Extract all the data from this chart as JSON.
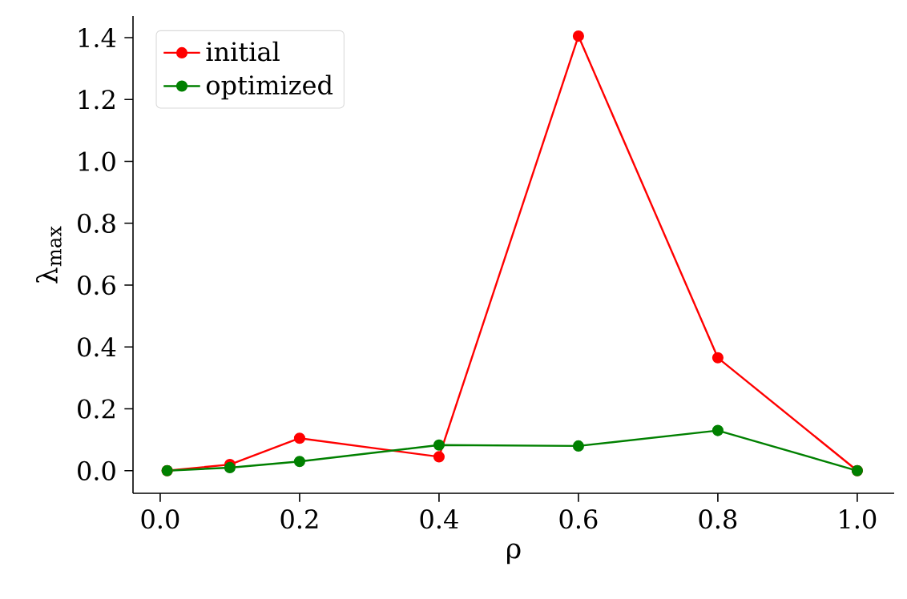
{
  "chart_data": {
    "type": "line",
    "xlabel": "ρ",
    "ylabel": "λ$_{max}$",
    "x": [
      0.01,
      0.1,
      0.2,
      0.4,
      0.6,
      0.8,
      1.0
    ],
    "series": [
      {
        "name": "initial",
        "color": "#ff0000",
        "values": [
          0,
          0.02,
          0.105,
          0.045,
          1.405,
          0.365,
          0
        ]
      },
      {
        "name": "optimized",
        "color": "#008000",
        "values": [
          0,
          0.01,
          0.03,
          0.083,
          0.08,
          0.13,
          0
        ]
      }
    ],
    "xlim": [
      -0.039,
      1.053
    ],
    "ylim": [
      -0.073,
      1.47
    ],
    "xticks": [
      {
        "value": 0,
        "label": "0.0"
      },
      {
        "value": 0.2,
        "label": "0.2"
      },
      {
        "value": 0.4,
        "label": "0.4"
      },
      {
        "value": 0.6,
        "label": "0.6"
      },
      {
        "value": 0.8,
        "label": "0.8"
      },
      {
        "value": 1,
        "label": "1.0"
      }
    ],
    "yticks": [
      {
        "value": 0,
        "label": "0.0"
      },
      {
        "value": 0.2,
        "label": "0.2"
      },
      {
        "value": 0.4,
        "label": "0.4"
      },
      {
        "value": 0.6,
        "label": "0.6"
      },
      {
        "value": 0.8,
        "label": "0.8"
      },
      {
        "value": 1,
        "label": "1.0"
      },
      {
        "value": 1.2,
        "label": "1.2"
      },
      {
        "value": 1.4,
        "label": "1.4"
      }
    ],
    "legend": "top left",
    "marker": "circle",
    "line_style": "solid",
    "grid": false
  }
}
